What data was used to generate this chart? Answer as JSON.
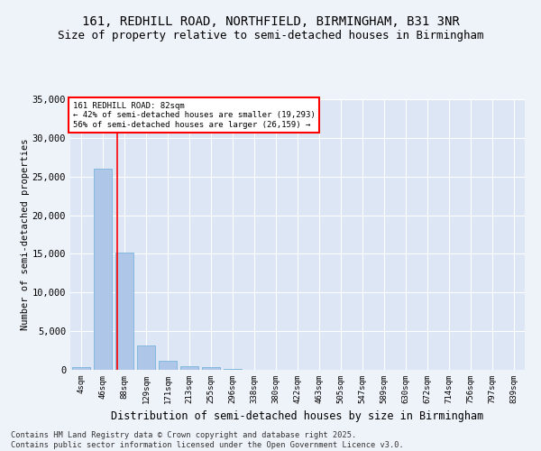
{
  "title": "161, REDHILL ROAD, NORTHFIELD, BIRMINGHAM, B31 3NR",
  "subtitle": "Size of property relative to semi-detached houses in Birmingham",
  "xlabel": "Distribution of semi-detached houses by size in Birmingham",
  "ylabel": "Number of semi-detached properties",
  "categories": [
    "4sqm",
    "46sqm",
    "88sqm",
    "129sqm",
    "171sqm",
    "213sqm",
    "255sqm",
    "296sqm",
    "338sqm",
    "380sqm",
    "422sqm",
    "463sqm",
    "505sqm",
    "547sqm",
    "589sqm",
    "630sqm",
    "672sqm",
    "714sqm",
    "756sqm",
    "797sqm",
    "839sqm"
  ],
  "values": [
    400,
    26000,
    15200,
    3200,
    1200,
    450,
    380,
    150,
    0,
    0,
    0,
    0,
    0,
    0,
    0,
    0,
    0,
    0,
    0,
    0,
    0
  ],
  "bar_color": "#aec6e8",
  "bar_edge_color": "#6aaed6",
  "vline_x": 1.65,
  "vline_color": "red",
  "annotation_title": "161 REDHILL ROAD: 82sqm",
  "annotation_line1": "← 42% of semi-detached houses are smaller (19,293)",
  "annotation_line2": "56% of semi-detached houses are larger (26,159) →",
  "annotation_box_color": "white",
  "annotation_box_edgecolor": "red",
  "ylim": [
    0,
    35000
  ],
  "yticks": [
    0,
    5000,
    10000,
    15000,
    20000,
    25000,
    30000,
    35000
  ],
  "footer_line1": "Contains HM Land Registry data © Crown copyright and database right 2025.",
  "footer_line2": "Contains public sector information licensed under the Open Government Licence v3.0.",
  "bg_color": "#eef2f9",
  "plot_bg_color": "#dce6f5",
  "title_fontsize": 10,
  "subtitle_fontsize": 9
}
